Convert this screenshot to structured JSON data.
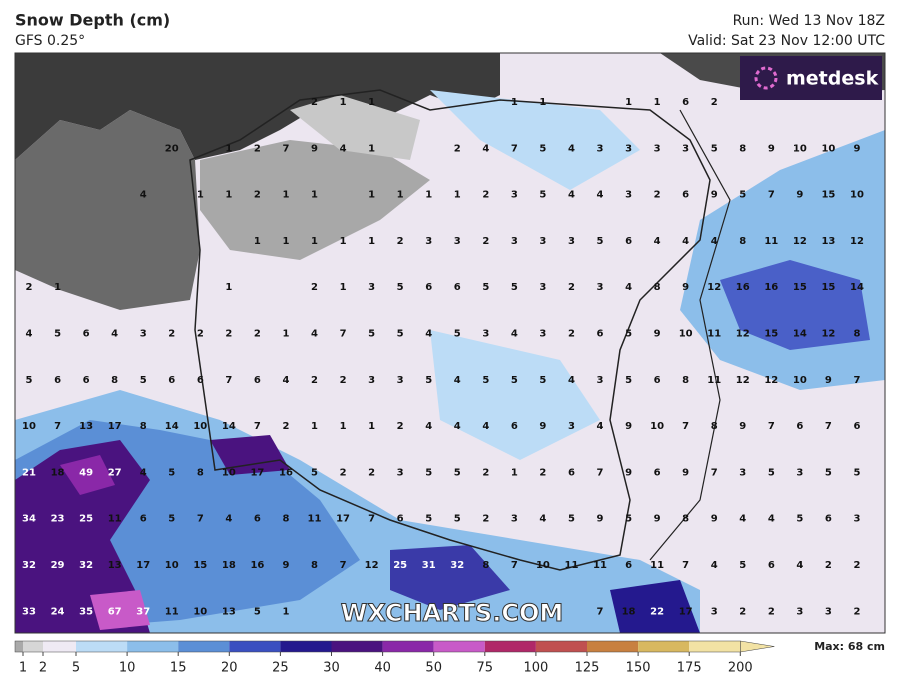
{
  "header": {
    "title": "Snow Depth (cm)",
    "subtitle": "GFS 0.25°",
    "run": "Run: Wed 13 Nov 18Z",
    "valid": "Valid: Sat 23 Nov 12:00 UTC"
  },
  "logo": "metdesk",
  "watermark": "WXCHARTS.COM",
  "grid": {
    "rows": [
      [
        null,
        null,
        null,
        null,
        null,
        null,
        null,
        null,
        null,
        null,
        2,
        1,
        1,
        null,
        null,
        null,
        null,
        1,
        1,
        null,
        null,
        1,
        1,
        6,
        2,
        null,
        null,
        null,
        null,
        null
      ],
      [
        null,
        null,
        null,
        null,
        null,
        20,
        null,
        1,
        2,
        7,
        9,
        4,
        1,
        null,
        null,
        2,
        4,
        7,
        5,
        4,
        3,
        3,
        3,
        3,
        5,
        8,
        9,
        10,
        10,
        9
      ],
      [
        null,
        null,
        null,
        null,
        4,
        null,
        1,
        1,
        2,
        1,
        1,
        null,
        1,
        1,
        1,
        1,
        2,
        3,
        5,
        4,
        4,
        3,
        2,
        6,
        9,
        5,
        7,
        9,
        15,
        10
      ],
      [
        null,
        null,
        null,
        null,
        null,
        null,
        null,
        null,
        1,
        1,
        1,
        1,
        1,
        2,
        3,
        3,
        2,
        3,
        3,
        3,
        5,
        6,
        4,
        4,
        4,
        8,
        11,
        12,
        13,
        12
      ],
      [
        2,
        1,
        null,
        null,
        null,
        null,
        null,
        1,
        null,
        null,
        2,
        1,
        3,
        5,
        6,
        6,
        5,
        5,
        3,
        2,
        3,
        4,
        8,
        9,
        12,
        16,
        16,
        15,
        15,
        14
      ],
      [
        4,
        5,
        6,
        4,
        3,
        2,
        2,
        2,
        2,
        1,
        4,
        7,
        5,
        5,
        4,
        5,
        3,
        4,
        3,
        2,
        6,
        5,
        9,
        10,
        11,
        12,
        15,
        14,
        12,
        8
      ],
      [
        5,
        6,
        6,
        8,
        5,
        6,
        6,
        7,
        6,
        4,
        2,
        2,
        3,
        3,
        5,
        4,
        5,
        5,
        5,
        4,
        3,
        5,
        6,
        8,
        11,
        12,
        12,
        10,
        9,
        7
      ],
      [
        10,
        7,
        13,
        17,
        8,
        14,
        10,
        14,
        7,
        2,
        1,
        1,
        1,
        2,
        4,
        4,
        4,
        6,
        9,
        3,
        4,
        9,
        10,
        7,
        8,
        9,
        7,
        6,
        7,
        6
      ],
      [
        21,
        18,
        49,
        27,
        4,
        5,
        8,
        10,
        17,
        16,
        5,
        2,
        2,
        3,
        5,
        5,
        2,
        1,
        2,
        6,
        7,
        9,
        6,
        9,
        7,
        3,
        5,
        3,
        5,
        5
      ],
      [
        34,
        23,
        25,
        11,
        6,
        5,
        7,
        4,
        6,
        8,
        11,
        17,
        7,
        6,
        5,
        5,
        2,
        3,
        4,
        5,
        9,
        5,
        9,
        8,
        9,
        4,
        4,
        5,
        6,
        3
      ],
      [
        32,
        29,
        32,
        13,
        17,
        10,
        15,
        18,
        16,
        9,
        8,
        7,
        12,
        25,
        31,
        32,
        8,
        7,
        10,
        11,
        11,
        6,
        11,
        7,
        4,
        5,
        6,
        4,
        2,
        2
      ],
      [
        33,
        24,
        35,
        67,
        37,
        11,
        10,
        13,
        5,
        1,
        null,
        null,
        null,
        null,
        null,
        null,
        null,
        null,
        null,
        null,
        7,
        18,
        22,
        17,
        3,
        2,
        2,
        3,
        3,
        2
      ]
    ]
  },
  "colorbar": {
    "ticks": [
      1,
      2,
      5,
      10,
      15,
      20,
      25,
      30,
      40,
      50,
      75,
      100,
      125,
      150,
      175,
      200
    ],
    "colors": [
      "#a9a9a9",
      "#d6d6d6",
      "#efeaf4",
      "#bcdcf6",
      "#8cbeea",
      "#5b8fd6",
      "#3a4fc0",
      "#24198e",
      "#4a137f",
      "#8a28a8",
      "#c85ac8",
      "#b02868",
      "#c05050",
      "#c88040",
      "#d8b860",
      "#f2e2a4"
    ],
    "max_label": "Max: 68 cm"
  }
}
